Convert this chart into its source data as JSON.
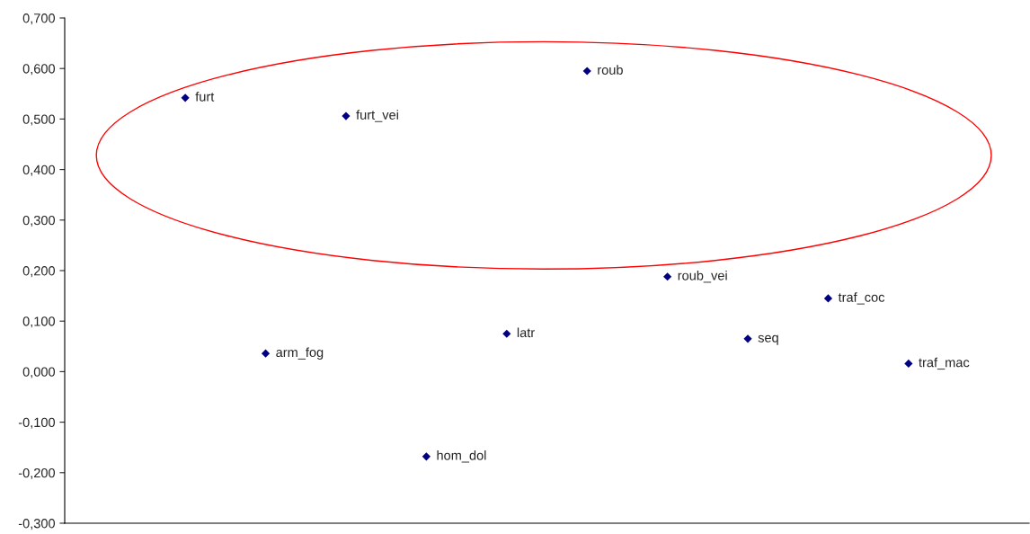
{
  "chart_data": {
    "type": "scatter",
    "categories": [
      null,
      null,
      null,
      null,
      null,
      null,
      null,
      null,
      null,
      null,
      null,
      null
    ],
    "series": [
      {
        "color": "#000080",
        "values": [
          null,
          0.542,
          0.036,
          0.506,
          -0.168,
          0.075,
          0.595,
          0.188,
          0.065,
          0.145,
          0.016,
          null
        ],
        "value_labels": [
          null,
          "furt",
          "arm_fog",
          "furt_vei",
          "hom_dol",
          "latr",
          "roub",
          "roub_vei",
          "seq",
          "traf_coc",
          "traf_mac",
          null
        ]
      }
    ],
    "ylim": [
      -0.3,
      0.7
    ],
    "yticks": [
      {
        "value": -0.3,
        "label": "-0,300"
      },
      {
        "value": -0.2,
        "label": "-0,200"
      },
      {
        "value": -0.1,
        "label": "-0,100"
      },
      {
        "value": 0,
        "label": "0,000"
      },
      {
        "value": 0.1,
        "label": "0,100"
      },
      {
        "value": 0.2,
        "label": "0,200"
      },
      {
        "value": 0.3,
        "label": "0,300"
      },
      {
        "value": 0.4,
        "label": "0,400"
      },
      {
        "value": 0.5,
        "label": "0,500"
      },
      {
        "value": 0.6,
        "label": "0,600"
      },
      {
        "value": 0.7,
        "label": "0,700"
      }
    ],
    "tick_labels": "y",
    "marker": "diamond"
  }
}
